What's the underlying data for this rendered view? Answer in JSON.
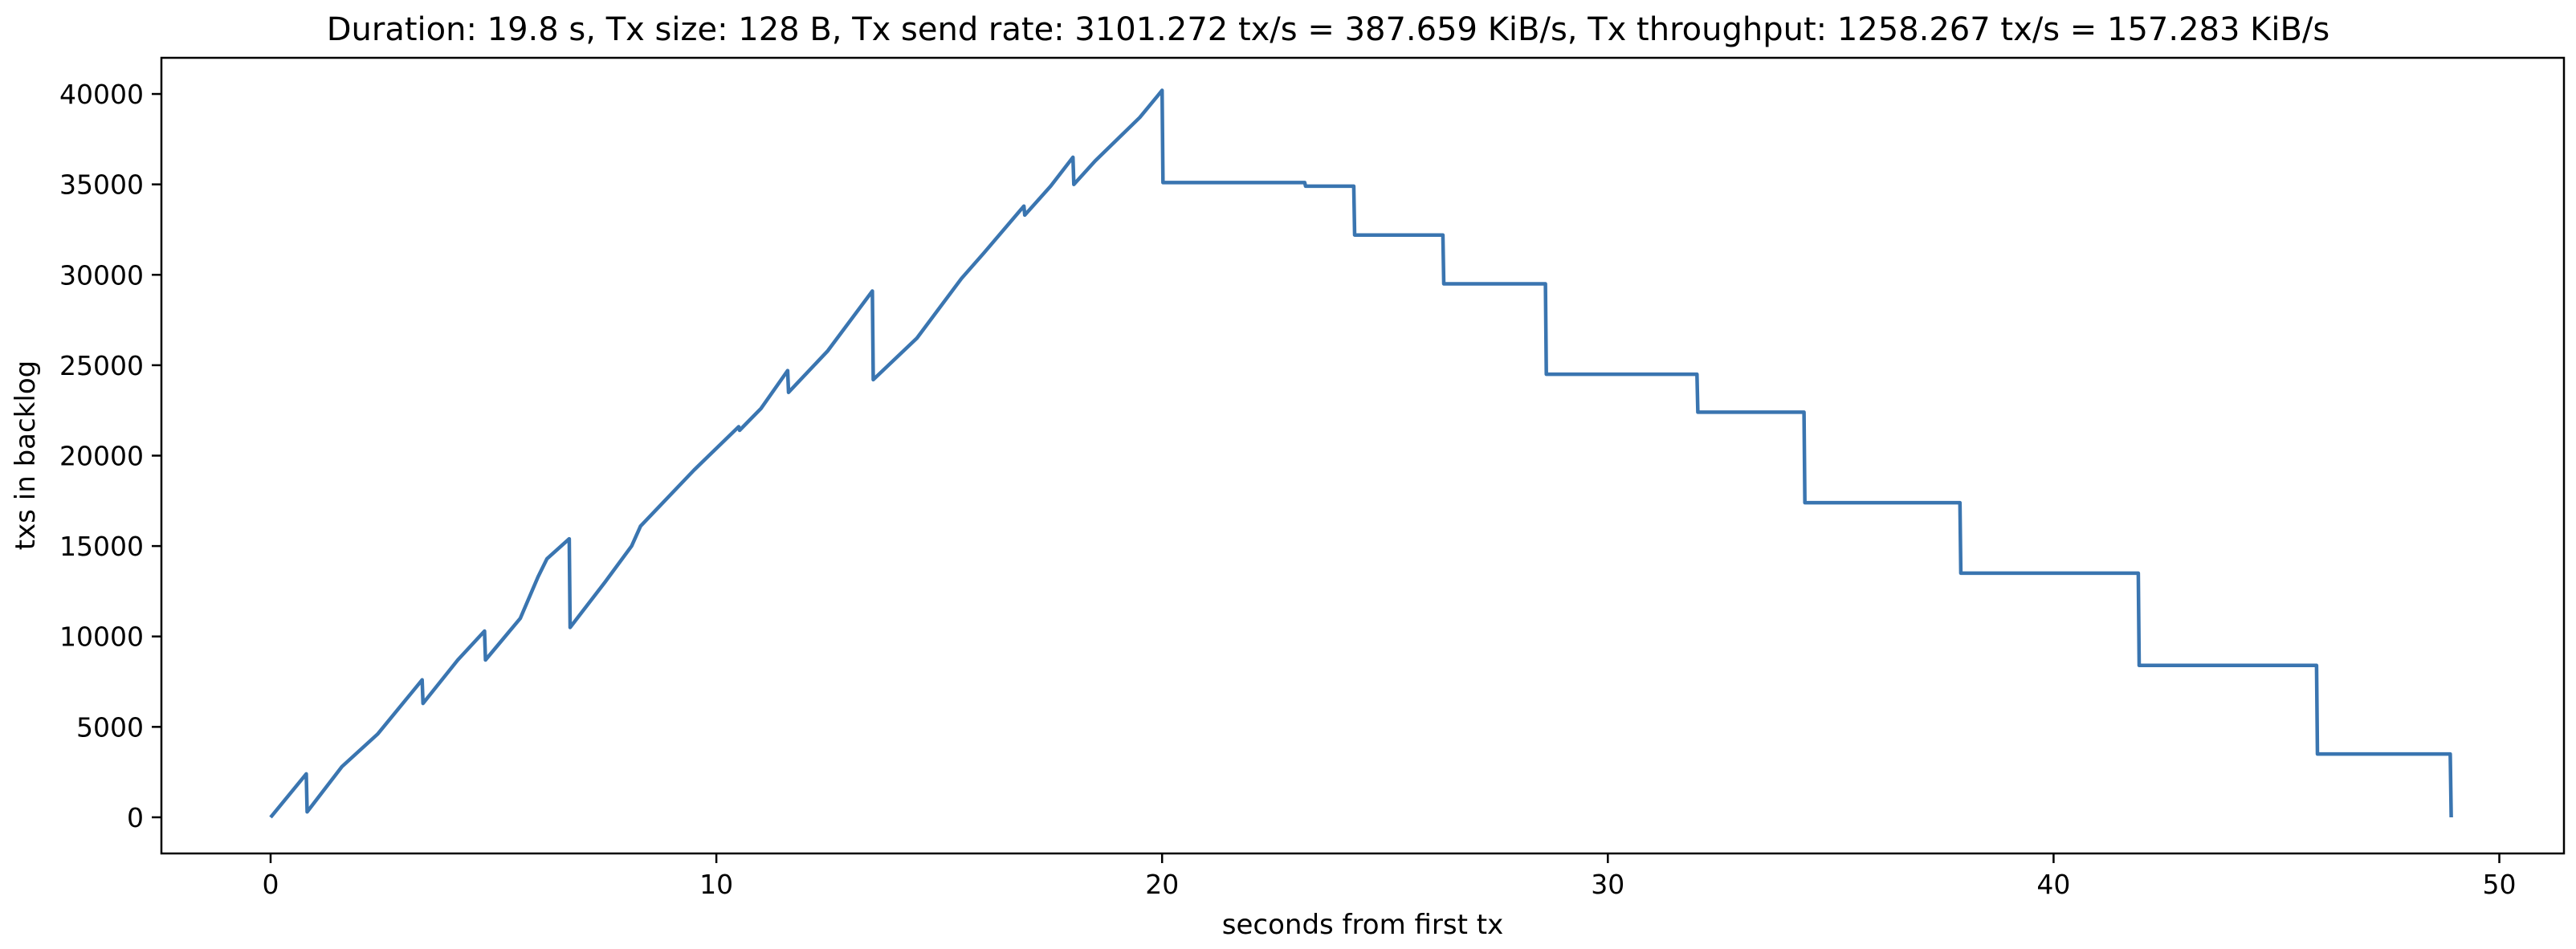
{
  "chart_data": {
    "type": "line",
    "title": "Duration: 19.8 s, Tx size: 128 B, Tx send rate: 3101.272 tx/s = 387.659 KiB/s, Tx throughput: 1258.267 tx/s = 157.283 KiB/s",
    "xlabel": "seconds from first tx",
    "ylabel": "txs in backlog",
    "xlim": [
      -2.45,
      51.45
    ],
    "ylim": [
      -2000,
      42000
    ],
    "xticks": [
      0,
      10,
      20,
      30,
      40,
      50
    ],
    "yticks": [
      0,
      5000,
      10000,
      15000,
      20000,
      25000,
      30000,
      35000,
      40000
    ],
    "grid": false,
    "color": "#3a75b0",
    "series": [
      {
        "name": "",
        "x": [
          0,
          0.8,
          0.82,
          1.6,
          2.4,
          3.4,
          3.42,
          4.2,
          4.8,
          4.82,
          5.6,
          6.0,
          6.2,
          6.7,
          6.72,
          7.5,
          8.1,
          8.3,
          9.5,
          10.5,
          10.52,
          11.0,
          11.6,
          11.62,
          12.5,
          13.5,
          13.52,
          14.5,
          15.5,
          16.0,
          16.9,
          16.92,
          17.5,
          18.0,
          18.02,
          18.5,
          19.5,
          19.9,
          20.0,
          20.02,
          23.2,
          23.22,
          24.3,
          24.32,
          26.3,
          26.32,
          28.6,
          28.62,
          32.0,
          32.02,
          34.4,
          34.42,
          37.9,
          37.92,
          41.9,
          41.92,
          45.9,
          45.92,
          48.9,
          48.92
        ],
        "y": [
          0,
          2400,
          300,
          2800,
          4600,
          7600,
          6300,
          8700,
          10300,
          8700,
          11000,
          13300,
          14300,
          15400,
          10500,
          13000,
          15000,
          16100,
          19200,
          21600,
          21400,
          22600,
          24700,
          23500,
          25800,
          29100,
          24200,
          26500,
          29800,
          31200,
          33800,
          33300,
          34900,
          36500,
          35000,
          36300,
          38700,
          39900,
          40200,
          35100,
          35100,
          34900,
          34900,
          32200,
          32200,
          29500,
          29500,
          24500,
          24500,
          22400,
          22400,
          17400,
          17400,
          13500,
          13500,
          8400,
          8400,
          3500,
          3500,
          0
        ]
      }
    ]
  }
}
